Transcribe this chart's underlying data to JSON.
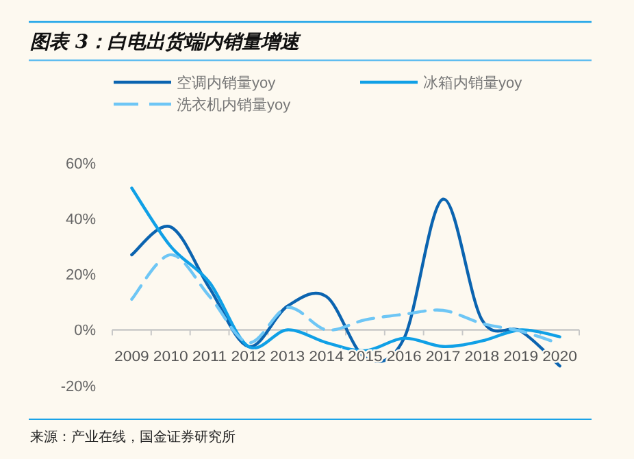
{
  "chart_data": {
    "type": "line",
    "title": "图表 3：白电出货端内销量增速",
    "categories": [
      "2009",
      "2010",
      "2011",
      "2012",
      "2013",
      "2014",
      "2015",
      "2016",
      "2017",
      "2018",
      "2019",
      "2020"
    ],
    "series": [
      {
        "name": "空调内销量yoy",
        "color": "#0b64b0",
        "line_style": "solid",
        "values": [
          27,
          37,
          15,
          -6,
          8.5,
          12,
          -10,
          -3,
          47,
          3.6,
          -0.5,
          -13
        ]
      },
      {
        "name": "冰箱内销量yoy",
        "color": "#10a0e6",
        "line_style": "solid",
        "values": [
          51,
          30,
          17,
          -6,
          0,
          -4.6,
          -7.5,
          -3,
          -6,
          -4,
          0,
          -2.5
        ]
      },
      {
        "name": "洗衣机内销量yoy",
        "color": "#6ec6f5",
        "line_style": "dashed",
        "values": [
          11,
          27,
          12,
          -4.6,
          8,
          0,
          3.6,
          5.6,
          7,
          2.3,
          -0.5,
          -5
        ]
      }
    ],
    "ylim": [
      -20,
      60
    ],
    "yticks": [
      {
        "value": -20,
        "label": "-20%"
      },
      {
        "value": 0,
        "label": "0%"
      },
      {
        "value": 20,
        "label": "20%"
      },
      {
        "value": 40,
        "label": "40%"
      },
      {
        "value": 60,
        "label": "60%"
      }
    ],
    "grid": false,
    "legend": "top",
    "marker": "none",
    "annotations": [
      "来源：产业在线，国金证券研究所"
    ]
  }
}
